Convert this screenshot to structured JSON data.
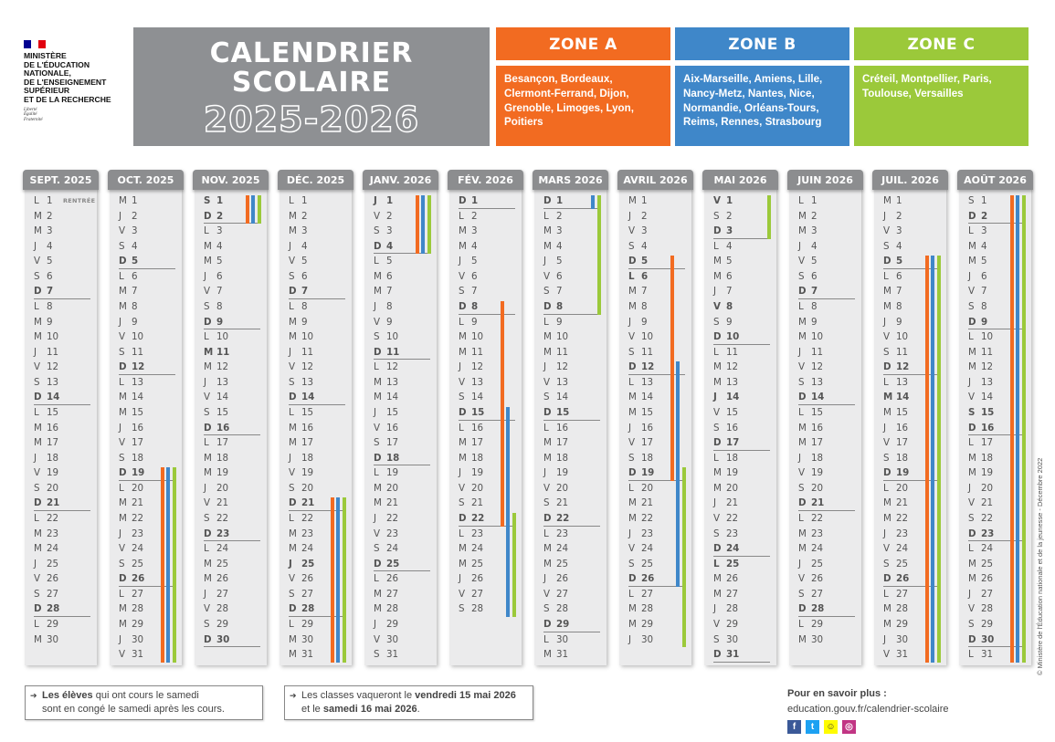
{
  "logo": {
    "ministry": "MINISTÈRE\nDE L'ÉDUCATION\nNATIONALE,\nDE L'ENSEIGNEMENT\nSUPÉRIEUR\nET DE LA RECHERCHE",
    "motto": "Liberté\nÉgalité\nFraternité",
    "flag_colors": [
      "#000091",
      "#ffffff",
      "#e1000f"
    ]
  },
  "title": {
    "line1": "CALENDRIER",
    "line2": "SCOLAIRE",
    "years": "2025-2026"
  },
  "zones": [
    {
      "id": "A",
      "label": "ZONE A",
      "color": "#f26b21",
      "academies": "Besançon, Bordeaux, Clermont-Ferrand, Dijon, Grenoble, Limoges, Lyon, Poitiers"
    },
    {
      "id": "B",
      "label": "ZONE B",
      "color": "#3f87c9",
      "academies": "Aix-Marseille, Amiens, Lille, Nancy-Metz, Nantes, Nice, Normandie, Orléans-Tours, Reims, Rennes, Strasbourg"
    },
    {
      "id": "C",
      "label": "ZONE C",
      "color": "#9bc93a",
      "academies": "Créteil, Montpellier, Paris, Toulouse, Versailles"
    }
  ],
  "months": [
    {
      "label": "SEPT. 2025",
      "letters": "LMMJVSDLMMJVSDLMMJVSDLMMJVSDLM",
      "holidays": [],
      "notes": {
        "1": "RENTRÉE"
      },
      "vacations": []
    },
    {
      "label": "OCT. 2025",
      "letters": "MJVSDLMMJVSDLMMJVSDLMMJVSDLMMJV",
      "holidays": [],
      "vacations": [
        {
          "zone": "A",
          "from": 19,
          "to": 31
        },
        {
          "zone": "B",
          "from": 19,
          "to": 31
        },
        {
          "zone": "C",
          "from": 19,
          "to": 31
        }
      ]
    },
    {
      "label": "NOV. 2025",
      "letters": "SDLMMJVSDLMMJVSDLMMJVSDLMMJVSD",
      "holidays": [
        1,
        11
      ],
      "vacations": [
        {
          "zone": "A",
          "from": 1,
          "to": 2
        },
        {
          "zone": "B",
          "from": 1,
          "to": 2
        },
        {
          "zone": "C",
          "from": 1,
          "to": 2
        }
      ]
    },
    {
      "label": "DÉC. 2025",
      "letters": "LMMJVSDLMMJVSDLMMJVSDLMMJVSDLMM",
      "holidays": [
        25
      ],
      "vacations": [
        {
          "zone": "A",
          "from": 21,
          "to": 31
        },
        {
          "zone": "B",
          "from": 21,
          "to": 31
        },
        {
          "zone": "C",
          "from": 21,
          "to": 31
        }
      ]
    },
    {
      "label": "JANV. 2026",
      "letters": "JVSDLMMJVSDLMMJVSDLMMJVSDLMMJVS",
      "holidays": [
        1
      ],
      "vacations": [
        {
          "zone": "A",
          "from": 1,
          "to": 4
        },
        {
          "zone": "B",
          "from": 1,
          "to": 4
        },
        {
          "zone": "C",
          "from": 1,
          "to": 4
        }
      ]
    },
    {
      "label": "FÉV. 2026",
      "letters": "DLMMJVSDLMMJVSDLMMJVSDLMMJVS",
      "holidays": [],
      "vacations": [
        {
          "zone": "A",
          "from": 8,
          "to": 22
        },
        {
          "zone": "B",
          "from": 15,
          "to": 28
        },
        {
          "zone": "C",
          "from": 22,
          "to": 28
        }
      ]
    },
    {
      "label": "MARS 2026",
      "letters": "DLMMJVSDLMMJVSDLMMJVSDLMMJVSDLM",
      "holidays": [],
      "vacations": [
        {
          "zone": "B",
          "from": 1,
          "to": 1
        },
        {
          "zone": "C",
          "from": 1,
          "to": 8
        }
      ]
    },
    {
      "label": "AVRIL 2026",
      "letters": "MJVSDLMMJVSDLMMJVSDLMMJVSDLMMJ",
      "holidays": [
        6
      ],
      "vacations": [
        {
          "zone": "A",
          "from": 5,
          "to": 19
        },
        {
          "zone": "B",
          "from": 12,
          "to": 26
        },
        {
          "zone": "C",
          "from": 19,
          "to": 30
        }
      ]
    },
    {
      "label": "MAI 2026",
      "letters": "VSDLMMJVSDLMMJVSDLMMJVSDLMMJVSD",
      "holidays": [
        1,
        8,
        14,
        25
      ],
      "vacations": [
        {
          "zone": "C",
          "from": 1,
          "to": 3
        }
      ]
    },
    {
      "label": "JUIN 2026",
      "letters": "LMMJVSDLMMJVSDLMMJVSDLMMJVSDLM",
      "holidays": [],
      "vacations": []
    },
    {
      "label": "JUIL. 2026",
      "letters": "MJVSDLMMJVSDLMMJVSDLMMJVSDLMMJV",
      "holidays": [
        14
      ],
      "vacations": [
        {
          "zone": "A",
          "from": 5,
          "to": 31
        },
        {
          "zone": "B",
          "from": 5,
          "to": 31
        },
        {
          "zone": "C",
          "from": 5,
          "to": 31
        }
      ]
    },
    {
      "label": "AOÛT 2026",
      "letters": "SDLMMJVSDLMMJVSDLMMJVSDLMMJVSDL",
      "holidays": [
        15
      ],
      "vacations": [
        {
          "zone": "A",
          "from": 1,
          "to": 31
        },
        {
          "zone": "B",
          "from": 1,
          "to": 31
        },
        {
          "zone": "C",
          "from": 1,
          "to": 31
        }
      ]
    }
  ],
  "footer": {
    "note1": {
      "arrow": "➔",
      "bold": "Les élèves",
      "text1": " qui ont cours le samedi",
      "text2": "sont en congé le samedi après les cours."
    },
    "note2": {
      "arrow": "➔",
      "text1": "Les classes vaqueront le ",
      "bold1": "vendredi 15 mai 2026",
      "text2": "et le ",
      "bold2": "samedi 16 mai 2026",
      "text3": "."
    },
    "more_title": "Pour en savoir plus :",
    "more_link": "education.gouv.fr/calendrier-scolaire",
    "social": [
      {
        "icon": "facebook-icon",
        "glyph": "f",
        "color": "#3b5998"
      },
      {
        "icon": "twitter-icon",
        "glyph": "t",
        "color": "#1da1f2"
      },
      {
        "icon": "snapchat-icon",
        "glyph": "☺",
        "color": "#fffc00"
      },
      {
        "icon": "instagram-icon",
        "glyph": "◎",
        "color": "#c13584"
      }
    ],
    "copyright": "© Ministère de l'Éducation nationale et de la jeunesse - Décembre 2022"
  }
}
